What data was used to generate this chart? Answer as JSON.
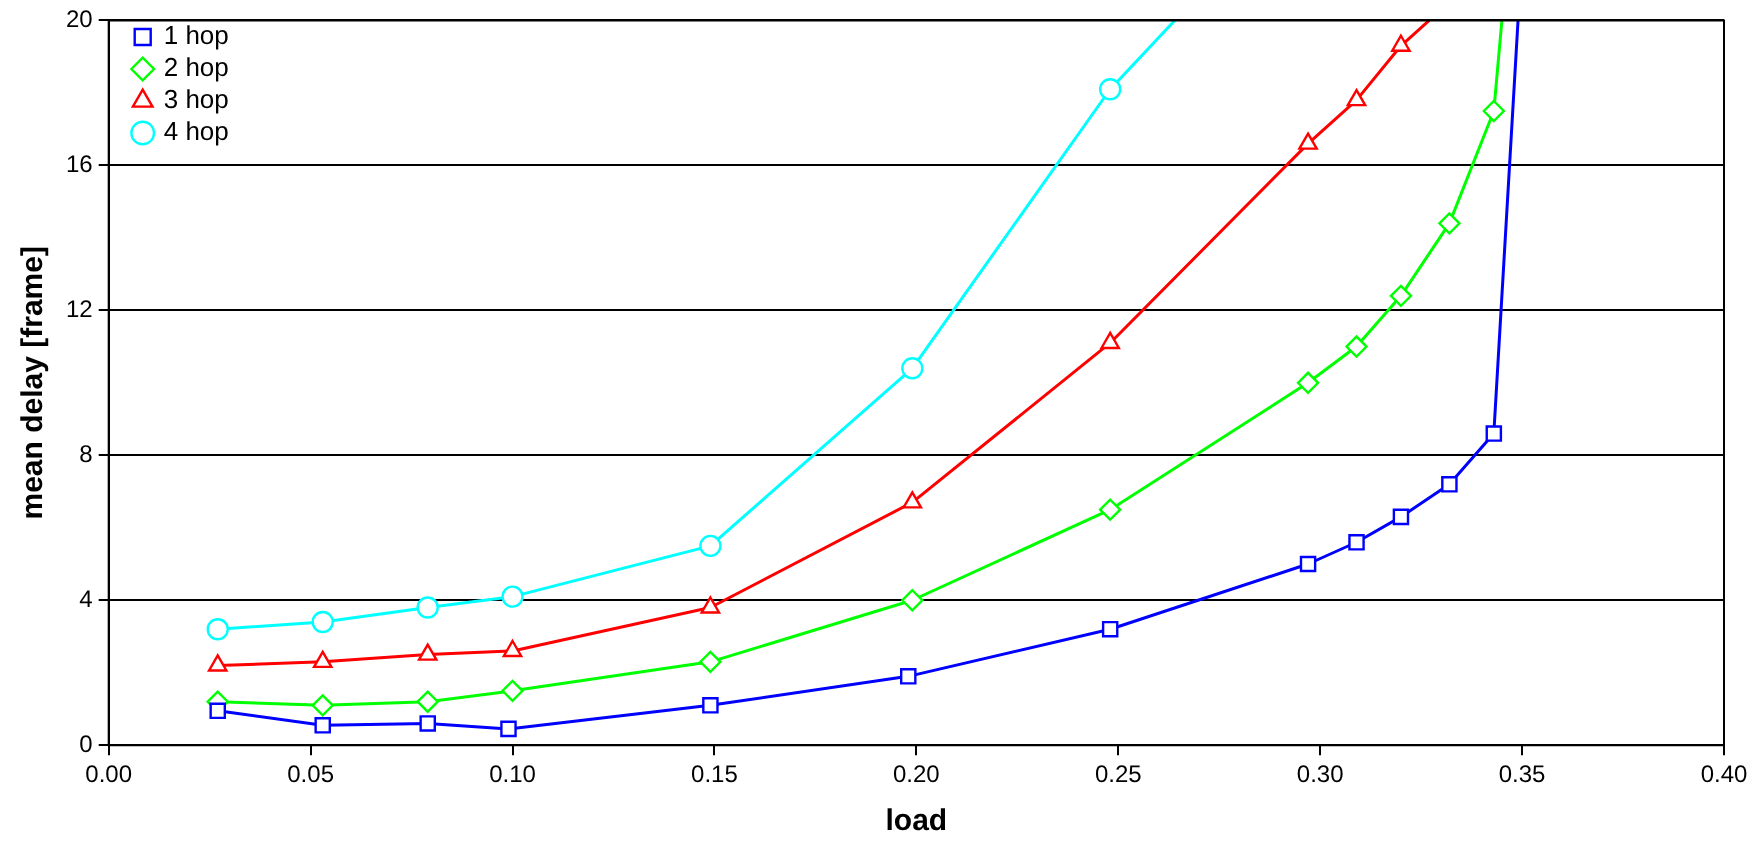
{
  "chart_data": {
    "type": "line",
    "xlabel": "load",
    "ylabel": "mean delay [frame]",
    "xlim": [
      0,
      0.4
    ],
    "ylim": [
      0,
      20
    ],
    "xticks": [
      {
        "value": 0,
        "label": "0.00"
      },
      {
        "value": 0.05,
        "label": "0.05"
      },
      {
        "value": 0.1,
        "label": "0.10"
      },
      {
        "value": 0.15,
        "label": "0.15"
      },
      {
        "value": 0.2,
        "label": "0.20"
      },
      {
        "value": 0.25,
        "label": "0.25"
      },
      {
        "value": 0.3,
        "label": "0.30"
      },
      {
        "value": 0.35,
        "label": "0.35"
      },
      {
        "value": 0.4,
        "label": "0.40"
      }
    ],
    "yticks": [
      0,
      4,
      8,
      12,
      16,
      20
    ],
    "grid": "y",
    "legend": "top left",
    "line_style": "solid",
    "series": [
      {
        "name": "1 hop",
        "color": "#0000ff",
        "marker": "square",
        "x": [
          0.027,
          0.053,
          0.079,
          0.099,
          0.149,
          0.198,
          0.248,
          0.297,
          0.309,
          0.32,
          0.332,
          0.343,
          0.349
        ],
        "values": [
          0.95,
          0.55,
          0.6,
          0.45,
          1.1,
          1.9,
          3.2,
          5.0,
          5.6,
          6.3,
          7.2,
          8.6,
          20
        ]
      },
      {
        "name": "2 hop",
        "color": "#00ff00",
        "marker": "diamond",
        "x": [
          0.027,
          0.053,
          0.079,
          0.1,
          0.149,
          0.199,
          0.248,
          0.297,
          0.309,
          0.32,
          0.332,
          0.343,
          0.345
        ],
        "values": [
          1.2,
          1.1,
          1.2,
          1.5,
          2.3,
          4.0,
          6.5,
          10.0,
          11.0,
          12.4,
          14.4,
          17.5,
          20
        ]
      },
      {
        "name": "3 hop",
        "color": "#ff0000",
        "marker": "triangle",
        "x": [
          0.027,
          0.053,
          0.079,
          0.1,
          0.149,
          0.199,
          0.248,
          0.297,
          0.309,
          0.32,
          0.327
        ],
        "values": [
          2.2,
          2.3,
          2.5,
          2.6,
          3.8,
          6.7,
          11.1,
          16.6,
          17.8,
          19.3,
          20
        ]
      },
      {
        "name": "4 hop",
        "color": "#00ffff",
        "marker": "circle",
        "x": [
          0.027,
          0.053,
          0.079,
          0.1,
          0.149,
          0.199,
          0.248,
          0.264
        ],
        "values": [
          3.2,
          3.4,
          3.8,
          4.1,
          5.5,
          10.4,
          18.1,
          20
        ]
      }
    ]
  }
}
